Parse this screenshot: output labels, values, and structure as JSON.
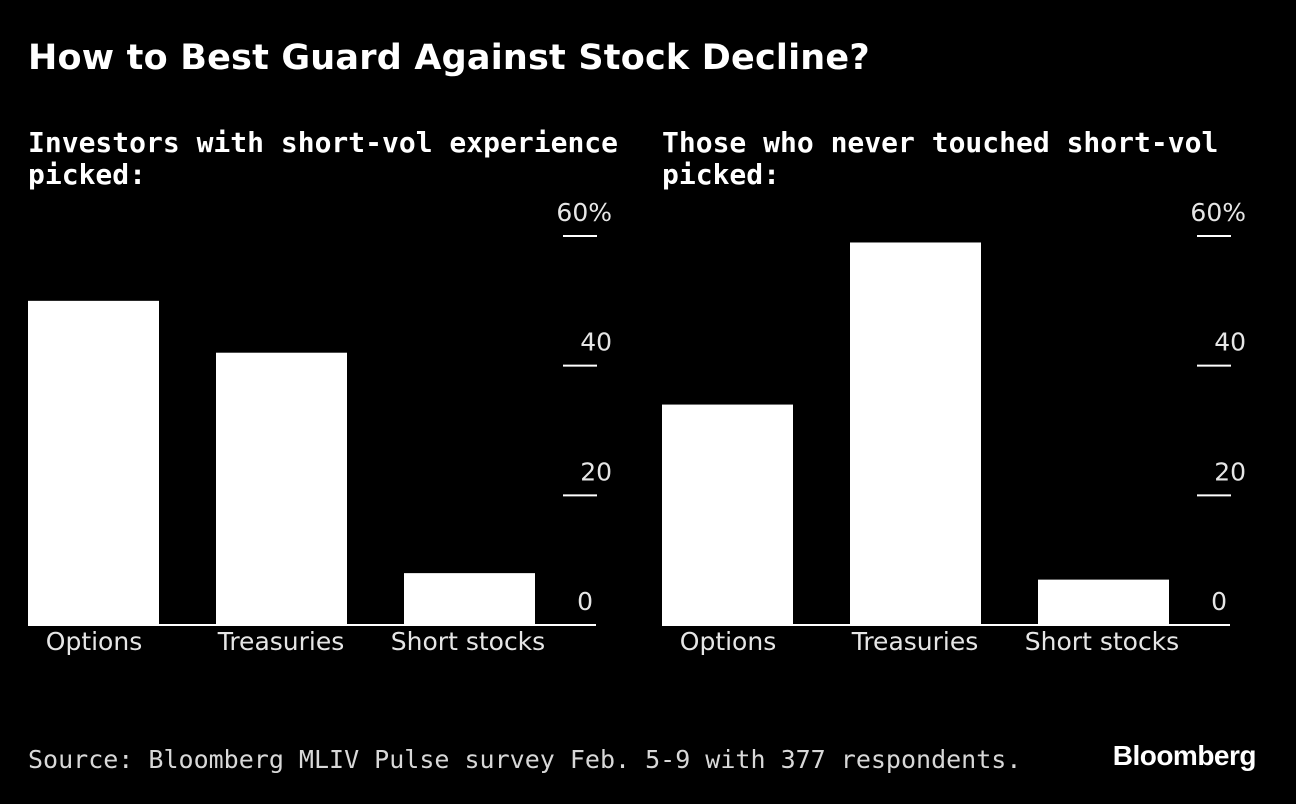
{
  "title": "How to Best Guard Against Stock Decline?",
  "source": "Source: Bloomberg MLIV Pulse survey Feb. 5-9 with 377 respondents.",
  "logo": "Bloomberg",
  "colors": {
    "background": "#000000",
    "bar": "#ffffff",
    "text": "#ffffff"
  },
  "chart_data": [
    {
      "type": "bar",
      "title": "Investors with short-vol experience picked:",
      "categories": [
        "Options",
        "Treasuries",
        "Short stocks"
      ],
      "values": [
        50,
        42,
        8
      ],
      "ylim": [
        0,
        60
      ],
      "yticks": [
        0,
        20,
        40,
        60
      ],
      "ytick_labels": [
        "0",
        "20",
        "40",
        "60%"
      ],
      "axis_position": "right",
      "grid": false
    },
    {
      "type": "bar",
      "title": "Those who never touched short-vol picked:",
      "categories": [
        "Options",
        "Treasuries",
        "Short stocks"
      ],
      "values": [
        34,
        59,
        7
      ],
      "ylim": [
        0,
        60
      ],
      "yticks": [
        0,
        20,
        40,
        60
      ],
      "ytick_labels": [
        "0",
        "20",
        "40",
        "60%"
      ],
      "axis_position": "right",
      "grid": false
    }
  ]
}
